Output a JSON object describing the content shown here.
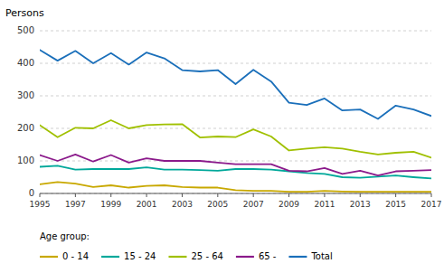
{
  "chart_data": {
    "type": "line",
    "y_label": "Persons",
    "legend_title": "Age group:",
    "x": [
      1995,
      1996,
      1997,
      1998,
      1999,
      2000,
      2001,
      2002,
      2003,
      2004,
      2005,
      2006,
      2007,
      2008,
      2009,
      2010,
      2011,
      2012,
      2013,
      2014,
      2015,
      2016,
      2017
    ],
    "series": [
      {
        "name": "0 - 14",
        "color": "#c8a800",
        "values": [
          28,
          35,
          30,
          20,
          25,
          18,
          23,
          25,
          20,
          18,
          18,
          10,
          8,
          8,
          5,
          5,
          8,
          6,
          5,
          5,
          5,
          5,
          5
        ]
      },
      {
        "name": "15 - 24",
        "color": "#00a89a",
        "values": [
          82,
          85,
          73,
          75,
          75,
          75,
          80,
          73,
          73,
          72,
          70,
          75,
          75,
          73,
          68,
          63,
          60,
          50,
          48,
          52,
          55,
          50,
          46
        ]
      },
      {
        "name": "25 - 64",
        "color": "#a0c000",
        "values": [
          210,
          173,
          202,
          200,
          225,
          200,
          210,
          212,
          213,
          172,
          175,
          173,
          197,
          175,
          132,
          138,
          142,
          138,
          128,
          120,
          125,
          128,
          110
        ]
      },
      {
        "name": "65 -",
        "color": "#8b1a8b",
        "values": [
          118,
          100,
          120,
          98,
          118,
          95,
          108,
          100,
          100,
          100,
          95,
          90,
          90,
          90,
          70,
          68,
          78,
          60,
          70,
          55,
          68,
          70,
          72
        ]
      },
      {
        "name": "Total",
        "color": "#1a6fba",
        "values": [
          441,
          408,
          438,
          400,
          431,
          396,
          433,
          415,
          379,
          375,
          379,
          336,
          380,
          344,
          279,
          272,
          292,
          255,
          258,
          229,
          270,
          258,
          238
        ]
      }
    ],
    "xlim": [
      1995,
      2017
    ],
    "xticks": [
      1995,
      1997,
      1999,
      2001,
      2003,
      2005,
      2007,
      2009,
      2011,
      2013,
      2015,
      2017
    ],
    "ylim": [
      0,
      500
    ],
    "yticks": [
      0,
      100,
      200,
      300,
      400,
      500
    ],
    "grid": true,
    "legend": "bottom"
  }
}
